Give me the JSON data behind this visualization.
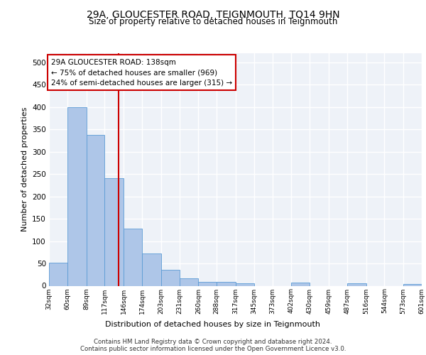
{
  "title_line1": "29A, GLOUCESTER ROAD, TEIGNMOUTH, TQ14 9HN",
  "title_line2": "Size of property relative to detached houses in Teignmouth",
  "xlabel": "Distribution of detached houses by size in Teignmouth",
  "ylabel": "Number of detached properties",
  "footer_line1": "Contains HM Land Registry data © Crown copyright and database right 2024.",
  "footer_line2": "Contains public sector information licensed under the Open Government Licence v3.0.",
  "annotation_line1": "29A GLOUCESTER ROAD: 138sqm",
  "annotation_line2": "← 75% of detached houses are smaller (969)",
  "annotation_line3": "24% of semi-detached houses are larger (315) →",
  "property_size": 138,
  "bins": [
    32,
    60,
    89,
    117,
    146,
    174,
    203,
    231,
    260,
    288,
    317,
    345,
    373,
    402,
    430,
    459,
    487,
    516,
    544,
    573,
    601
  ],
  "bin_labels": [
    "32sqm",
    "60sqm",
    "89sqm",
    "117sqm",
    "146sqm",
    "174sqm",
    "203sqm",
    "231sqm",
    "260sqm",
    "288sqm",
    "317sqm",
    "345sqm",
    "373sqm",
    "402sqm",
    "430sqm",
    "459sqm",
    "487sqm",
    "516sqm",
    "544sqm",
    "573sqm",
    "601sqm"
  ],
  "values": [
    52,
    400,
    338,
    240,
    128,
    72,
    35,
    17,
    8,
    8,
    5,
    0,
    0,
    7,
    0,
    0,
    5,
    0,
    0,
    4
  ],
  "bar_color": "#aec6e8",
  "bar_edge_color": "#5b9bd5",
  "vline_color": "#cc0000",
  "annotation_box_color": "#cc0000",
  "ylim": [
    0,
    520
  ],
  "yticks": [
    0,
    50,
    100,
    150,
    200,
    250,
    300,
    350,
    400,
    450,
    500
  ],
  "plot_bg_color": "#eef2f8"
}
